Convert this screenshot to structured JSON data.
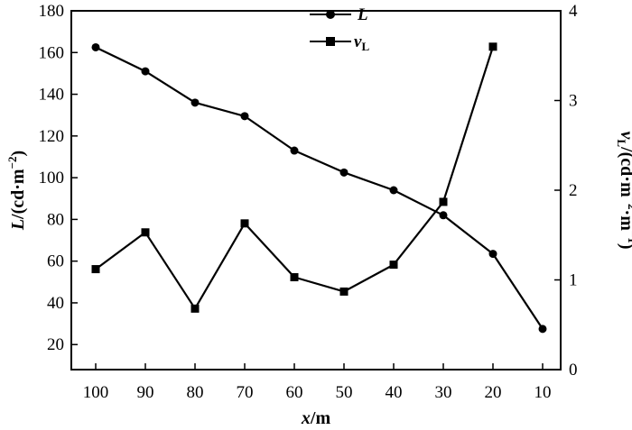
{
  "chart_data": {
    "type": "line",
    "x_axis": {
      "label_var": "x",
      "label_unit": "/m",
      "ticks": [
        100,
        90,
        80,
        70,
        60,
        50,
        40,
        30,
        20,
        10
      ],
      "reversed": true
    },
    "y_left": {
      "label_var": "L",
      "label_unit": "/(cd·m",
      "label_exp": "−2",
      "label_close": ")",
      "ticks": [
        20,
        40,
        60,
        80,
        100,
        120,
        140,
        160,
        180
      ],
      "range": [
        8,
        180
      ]
    },
    "y_right": {
      "label_var": "v",
      "label_sub": "L",
      "label_unit": "/(cd·m",
      "label_exp1": "−2",
      "label_mid": "·m",
      "label_exp2": "−1",
      "label_close": ")",
      "ticks": [
        0,
        1,
        2,
        3,
        4
      ],
      "range": [
        0,
        4
      ]
    },
    "series": [
      {
        "name": "L",
        "axis": "left",
        "marker": "circle",
        "color": "#000000",
        "x": [
          100,
          90,
          80,
          70,
          60,
          50,
          40,
          30,
          20,
          10
        ],
        "y": [
          162.5,
          151,
          136,
          129.5,
          113,
          102.5,
          94,
          82,
          63.5,
          27.5
        ]
      },
      {
        "name": "v",
        "name_sub": "L",
        "axis": "right",
        "marker": "square",
        "color": "#000000",
        "x": [
          100,
          90,
          80,
          70,
          60,
          50,
          40,
          30,
          20
        ],
        "y": [
          1.12,
          1.53,
          0.68,
          1.63,
          1.03,
          0.87,
          1.17,
          1.87,
          3.6
        ]
      }
    ],
    "legend_position": "top-center",
    "grid": false
  }
}
